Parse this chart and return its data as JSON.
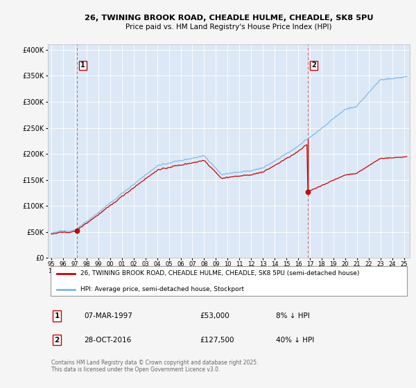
{
  "title1": "26, TWINING BROOK ROAD, CHEADLE HULME, CHEADLE, SK8 5PU",
  "title2": "Price paid vs. HM Land Registry's House Price Index (HPI)",
  "ylabel_ticks": [
    "£0",
    "£50K",
    "£100K",
    "£150K",
    "£200K",
    "£250K",
    "£300K",
    "£350K",
    "£400K"
  ],
  "ytick_values": [
    0,
    50000,
    100000,
    150000,
    200000,
    250000,
    300000,
    350000,
    400000
  ],
  "ylim": [
    0,
    410000
  ],
  "xlim_start": 1994.7,
  "xlim_end": 2025.5,
  "hpi_color": "#7ab8e8",
  "price_color": "#cc0000",
  "bg_color": "#f5f5f5",
  "plot_bg": "#dce8f5",
  "legend_label1": "26, TWINING BROOK ROAD, CHEADLE HULME, CHEADLE, SK8 5PU (semi-detached house)",
  "legend_label2": "HPI: Average price, semi-detached house, Stockport",
  "buy1_year": 1997.18,
  "buy1_price": 53000,
  "buy2_year": 2016.83,
  "buy2_price": 127500,
  "table_row1": [
    "1",
    "07-MAR-1997",
    "£53,000",
    "8% ↓ HPI"
  ],
  "table_row2": [
    "2",
    "28-OCT-2016",
    "£127,500",
    "40% ↓ HPI"
  ],
  "footnote": "Contains HM Land Registry data © Crown copyright and database right 2025.\nThis data is licensed under the Open Government Licence v3.0."
}
